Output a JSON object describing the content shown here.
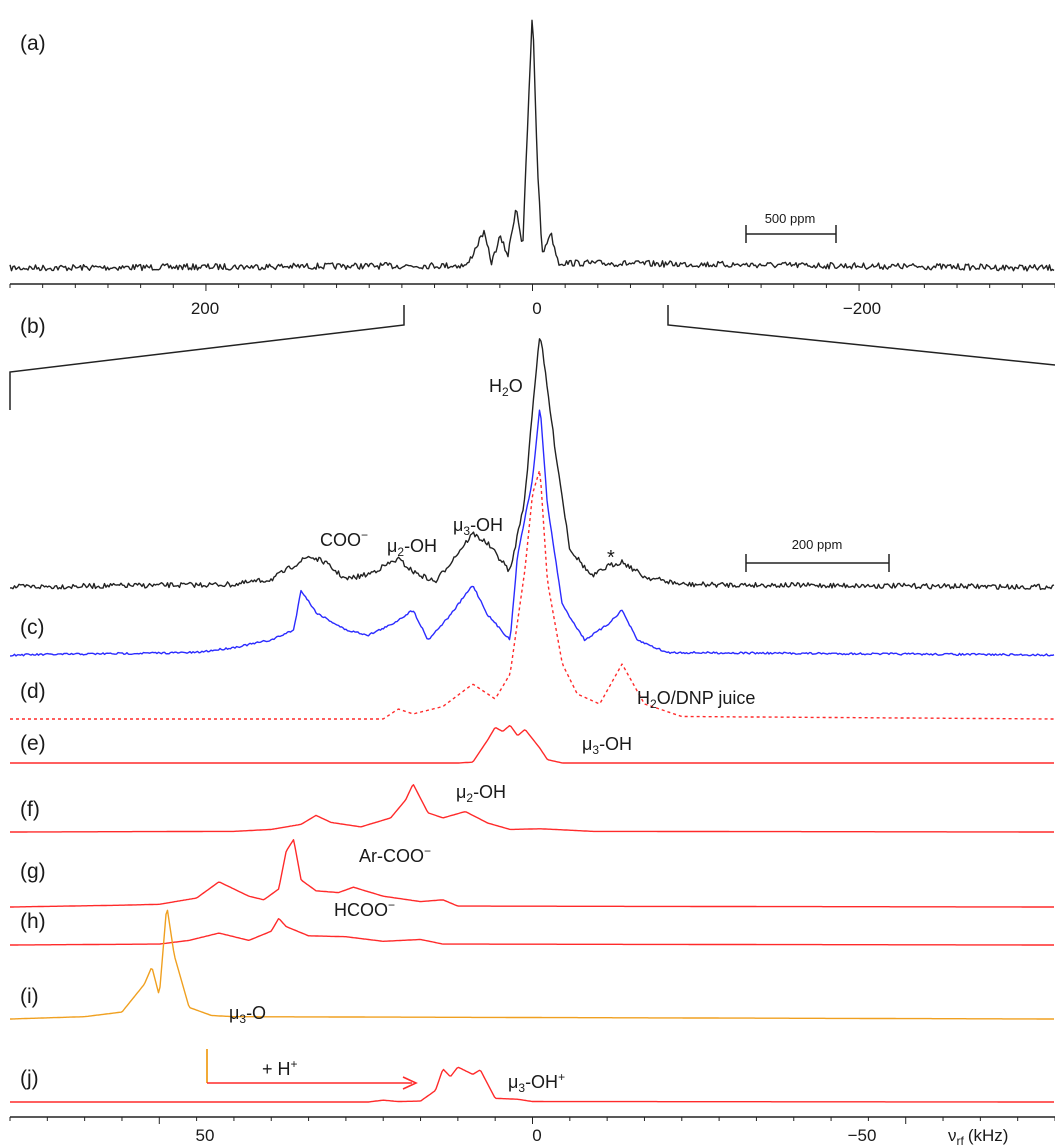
{
  "panel_labels": {
    "a": "(a)",
    "b": "(b)",
    "c": "(c)",
    "d": "(d)",
    "e": "(e)",
    "f": "(f)",
    "g": "(g)",
    "h": "(h)",
    "i": "(i)",
    "j": "(j)"
  },
  "peak_labels": {
    "h2o": "H",
    "h2o_sub": "2",
    "h2o_tail": "O",
    "coo": "COO",
    "coo_sup": "−",
    "mu2": "μ",
    "mu2_sub": "2",
    "mu2_tail": "-OH",
    "mu3": "μ",
    "mu3_sub": "3",
    "mu3_tail": "-OH",
    "star": "*",
    "dnp": "H",
    "dnp_sub": "2",
    "dnp_tail": "O/DNP juice",
    "e_mu3": "μ",
    "e_mu3_sub": "3",
    "e_mu3_tail": "-OH",
    "f_mu2": "μ",
    "f_mu2_sub": "2",
    "f_mu2_tail": "-OH",
    "arcoo": "Ar-COO",
    "arcoo_sup": "−",
    "hcoo": "HCOO",
    "hcoo_sup": "−",
    "mu3o": "μ",
    "mu3o_sub": "3",
    "mu3o_tail": "-O",
    "protonation": "+ H",
    "protonation_sup": "+",
    "mu3ohp": "μ",
    "mu3ohp_sub": "3",
    "mu3ohp_tail": "-OH",
    "mu3ohp_sup": "+"
  },
  "scale_bars": {
    "a": "500 ppm",
    "b": "200 ppm"
  },
  "colors": {
    "a": "#222222",
    "b": "#222222",
    "c": "#2b2bff",
    "d": "#ff2a2a",
    "e": "#ff2a2a",
    "f": "#ff2a2a",
    "g": "#ff2a2a",
    "h": "#ff2a2a",
    "i": "#f0a020",
    "j": "#ff2a2a",
    "arrow": "#ff2a2a",
    "arrow_start": "#f0a020"
  },
  "chart_data": [
    {
      "type": "line",
      "panel": "(a)",
      "xlabel": "",
      "xlim": [
        320,
        -320
      ],
      "x_ticks": [
        200,
        0,
        -200
      ],
      "x_tick_labels": [
        "200",
        "0",
        "−200"
      ],
      "series": [
        {
          "values": [
            [
              320,
              0
            ],
            [
              40,
              0.01
            ],
            [
              30,
              0.14
            ],
            [
              25,
              0.02
            ],
            [
              20,
              0.12
            ],
            [
              15,
              0.05
            ],
            [
              10,
              0.24
            ],
            [
              6,
              0.08
            ],
            [
              3,
              0.55
            ],
            [
              0,
              1.0
            ],
            [
              -3,
              0.4
            ],
            [
              -6,
              0.05
            ],
            [
              -11,
              0.14
            ],
            [
              -16,
              0.02
            ],
            [
              -320,
              0
            ]
          ]
        }
      ]
    },
    {
      "type": "line",
      "panels": [
        "(b)",
        "(c)",
        "(d)",
        "(e)",
        "(f)",
        "(g)",
        "(h)",
        "(i)",
        "(j)"
      ],
      "xlabel": "ν",
      "xlabel_sub": "rf",
      "xlabel_unit": "(kHz)",
      "xlim": [
        70,
        -70
      ],
      "x_ticks": [
        50,
        0,
        -50
      ],
      "x_tick_labels": [
        "50",
        "0",
        "−50"
      ],
      "series": [
        {
          "panel": "(b)",
          "values": [
            [
              70,
              0
            ],
            [
              40,
              0.01
            ],
            [
              35,
              0.03
            ],
            [
              30,
              0.12
            ],
            [
              28,
              0.1
            ],
            [
              25,
              0.03
            ],
            [
              22,
              0.05
            ],
            [
              18,
              0.11
            ],
            [
              16,
              0.06
            ],
            [
              13,
              0.02
            ],
            [
              8,
              0.21
            ],
            [
              6,
              0.17
            ],
            [
              3,
              0.06
            ],
            [
              1,
              0.35
            ],
            [
              0,
              0.7
            ],
            [
              -1,
              1.0
            ],
            [
              -3,
              0.55
            ],
            [
              -5,
              0.15
            ],
            [
              -8,
              0.04
            ],
            [
              -10,
              0.08
            ],
            [
              -12,
              0.1
            ],
            [
              -15,
              0.04
            ],
            [
              -20,
              0.01
            ],
            [
              -70,
              0
            ]
          ]
        },
        {
          "panel": "(c)",
          "values": [
            [
              70,
              0
            ],
            [
              45,
              0.01
            ],
            [
              40,
              0.03
            ],
            [
              35,
              0.06
            ],
            [
              32,
              0.1
            ],
            [
              31,
              0.26
            ],
            [
              29,
              0.17
            ],
            [
              25,
              0.1
            ],
            [
              22,
              0.08
            ],
            [
              19,
              0.12
            ],
            [
              16,
              0.18
            ],
            [
              14,
              0.06
            ],
            [
              11,
              0.16
            ],
            [
              8,
              0.28
            ],
            [
              6,
              0.16
            ],
            [
              3,
              0.06
            ],
            [
              2,
              0.4
            ],
            [
              0,
              0.7
            ],
            [
              -1,
              1.0
            ],
            [
              -2,
              0.6
            ],
            [
              -4,
              0.2
            ],
            [
              -7,
              0.06
            ],
            [
              -10,
              0.12
            ],
            [
              -12,
              0.18
            ],
            [
              -14,
              0.06
            ],
            [
              -18,
              0.01
            ],
            [
              -70,
              0
            ]
          ]
        },
        {
          "panel": "(d)",
          "values": [
            [
              70,
              0
            ],
            [
              20,
              0.0
            ],
            [
              18,
              0.04
            ],
            [
              16,
              0.02
            ],
            [
              12,
              0.05
            ],
            [
              8,
              0.14
            ],
            [
              5,
              0.08
            ],
            [
              3,
              0.18
            ],
            [
              1,
              0.6
            ],
            [
              0,
              0.9
            ],
            [
              -1,
              1.0
            ],
            [
              -2,
              0.55
            ],
            [
              -4,
              0.22
            ],
            [
              -6,
              0.1
            ],
            [
              -9,
              0.06
            ],
            [
              -12,
              0.22
            ],
            [
              -15,
              0.06
            ],
            [
              -20,
              0.01
            ],
            [
              -70,
              0
            ]
          ]
        },
        {
          "panel": "(e)",
          "values": [
            [
              70,
              0
            ],
            [
              10,
              0.0
            ],
            [
              8,
              0.02
            ],
            [
              6,
              0.55
            ],
            [
              5,
              0.85
            ],
            [
              4,
              0.75
            ],
            [
              3,
              0.9
            ],
            [
              2,
              0.65
            ],
            [
              1,
              0.8
            ],
            [
              -1,
              0.35
            ],
            [
              -2,
              0.08
            ],
            [
              -4,
              0.0
            ],
            [
              -70,
              0
            ]
          ]
        },
        {
          "panel": "(f)",
          "values": [
            [
              70,
              0
            ],
            [
              40,
              0.01
            ],
            [
              35,
              0.04
            ],
            [
              31,
              0.12
            ],
            [
              29,
              0.26
            ],
            [
              27,
              0.15
            ],
            [
              23,
              0.08
            ],
            [
              19,
              0.22
            ],
            [
              17,
              0.5
            ],
            [
              16,
              0.75
            ],
            [
              14,
              0.3
            ],
            [
              12,
              0.22
            ],
            [
              9,
              0.32
            ],
            [
              6,
              0.14
            ],
            [
              3,
              0.04
            ],
            [
              -1,
              0.05
            ],
            [
              -3,
              0.04
            ],
            [
              -8,
              0.01
            ],
            [
              -70,
              0
            ]
          ]
        },
        {
          "panel": "(g)",
          "values": [
            [
              70,
              0
            ],
            [
              55,
              0.02
            ],
            [
              50,
              0.03
            ],
            [
              45,
              0.1
            ],
            [
              42,
              0.28
            ],
            [
              38,
              0.12
            ],
            [
              36,
              0.08
            ],
            [
              34,
              0.2
            ],
            [
              33,
              0.62
            ],
            [
              32,
              0.75
            ],
            [
              31,
              0.3
            ],
            [
              29,
              0.18
            ],
            [
              26,
              0.16
            ],
            [
              24,
              0.22
            ],
            [
              20,
              0.12
            ],
            [
              15,
              0.06
            ],
            [
              12,
              0.08
            ],
            [
              10,
              0.01
            ],
            [
              -70,
              0
            ]
          ]
        },
        {
          "panel": "(h)",
          "values": [
            [
              70,
              0
            ],
            [
              50,
              0.02
            ],
            [
              46,
              0.1
            ],
            [
              42,
              0.26
            ],
            [
              38,
              0.1
            ],
            [
              35,
              0.3
            ],
            [
              34,
              0.58
            ],
            [
              33,
              0.4
            ],
            [
              30,
              0.2
            ],
            [
              25,
              0.18
            ],
            [
              20,
              0.08
            ],
            [
              15,
              0.12
            ],
            [
              12,
              0.02
            ],
            [
              -70,
              0
            ]
          ]
        },
        {
          "panel": "(i)",
          "values": [
            [
              70,
              0
            ],
            [
              60,
              0.02
            ],
            [
              55,
              0.06
            ],
            [
              52,
              0.3
            ],
            [
              51,
              0.45
            ],
            [
              50,
              0.2
            ],
            [
              49,
              0.98
            ],
            [
              48,
              0.55
            ],
            [
              46,
              0.1
            ],
            [
              43,
              0.03
            ],
            [
              40,
              0.02
            ],
            [
              -70,
              0
            ]
          ]
        },
        {
          "panel": "(j)",
          "values": [
            [
              70,
              0
            ],
            [
              22,
              0.0
            ],
            [
              20,
              0.04
            ],
            [
              18,
              0.01
            ],
            [
              15,
              0.02
            ],
            [
              13,
              0.25
            ],
            [
              12,
              0.72
            ],
            [
              11,
              0.55
            ],
            [
              10,
              0.76
            ],
            [
              8,
              0.6
            ],
            [
              7,
              0.7
            ],
            [
              5,
              0.08
            ],
            [
              2,
              0.06
            ],
            [
              0,
              0.01
            ],
            [
              -70,
              0
            ]
          ]
        }
      ]
    }
  ]
}
